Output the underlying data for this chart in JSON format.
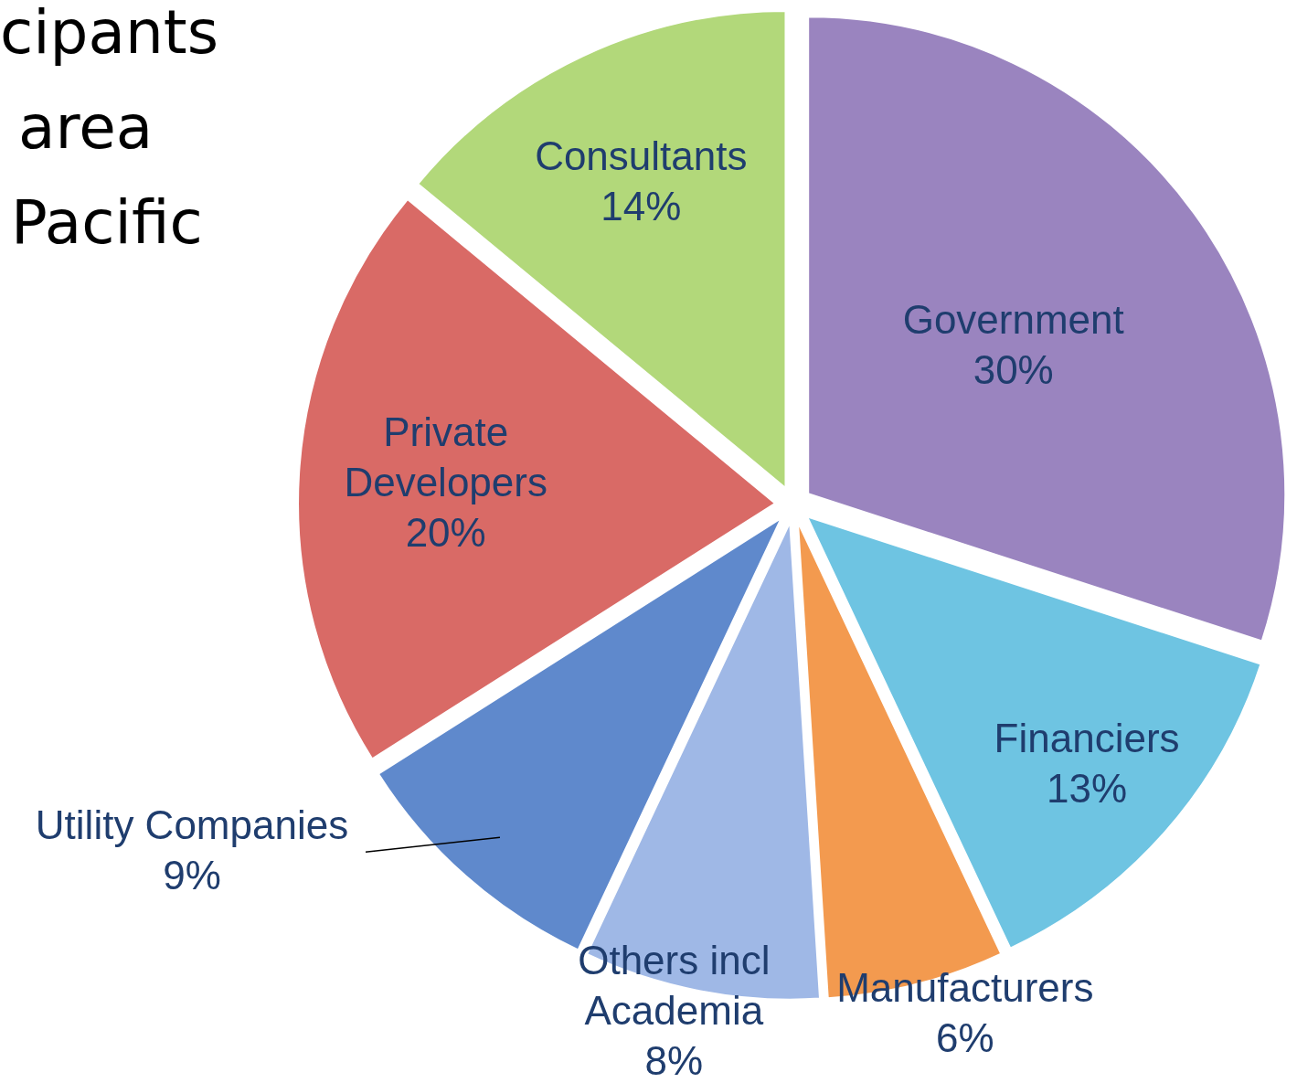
{
  "chart_data": {
    "type": "pie",
    "categories": [
      "Government",
      "Financiers",
      "Manufacturers",
      "Others incl Academia",
      "Utility Companies",
      "Private Developers",
      "Consultants"
    ],
    "values": [
      30,
      13,
      6,
      8,
      9,
      20,
      14
    ],
    "value_labels": [
      "30%",
      "13%",
      "6%",
      "8%",
      "9%",
      "20%",
      "14%"
    ],
    "colors": [
      "#9a84bf",
      "#6ec4e2",
      "#f39a4f",
      "#9fb8e6",
      "#5f89cc",
      "#d96a66",
      "#b2d87a"
    ],
    "annotations": [
      "cipants",
      "area",
      "Pacific"
    ]
  }
}
